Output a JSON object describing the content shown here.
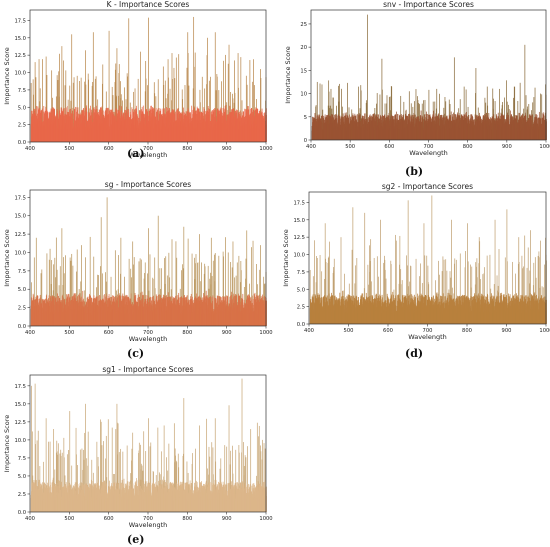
{
  "panels": [
    {
      "id": "a",
      "label": "(a)",
      "chart_data": {
        "type": "bar",
        "title": "K - Importance Scores",
        "xlabel": "Wavelength",
        "ylabel": "Importance Score",
        "xlim": [
          400,
          1000
        ],
        "ylim": [
          0,
          19
        ],
        "xticks": [
          400,
          500,
          600,
          700,
          800,
          900,
          1000
        ],
        "yticks": [
          0.0,
          2.5,
          5.0,
          7.5,
          10.0,
          12.5,
          15.0,
          17.5
        ],
        "ytick_labels": [
          "0.0",
          "2.5",
          "5.0",
          "7.5",
          "10.0",
          "12.5",
          "15.0",
          "17.5"
        ],
        "color": "#e8684a",
        "edge_color": "#b8864a",
        "base_level": 3.5,
        "peaks": [
          [
            412,
            11.5
          ],
          [
            440,
            12.3
          ],
          [
            480,
            13.8
          ],
          [
            505,
            15.5
          ],
          [
            540,
            13.2
          ],
          [
            560,
            15.8
          ],
          [
            600,
            16.0
          ],
          [
            620,
            13.5
          ],
          [
            650,
            17.8
          ],
          [
            680,
            13.0
          ],
          [
            700,
            17.9
          ],
          [
            760,
            12.8
          ],
          [
            800,
            15.8
          ],
          [
            815,
            18.0
          ],
          [
            850,
            15.0
          ],
          [
            870,
            15.8
          ],
          [
            905,
            14.0
          ],
          [
            928,
            12.8
          ],
          [
            958,
            11.8
          ],
          [
            985,
            10.5
          ]
        ]
      }
    },
    {
      "id": "b",
      "label": "(b)",
      "chart_data": {
        "type": "bar",
        "title": "snv - Importance Scores",
        "xlabel": "Wavelength",
        "ylabel": "Importance Score",
        "xlim": [
          400,
          1000
        ],
        "ylim": [
          0,
          28
        ],
        "xticks": [
          400,
          500,
          600,
          700,
          800,
          900,
          1000
        ],
        "yticks": [
          0,
          5,
          10,
          15,
          20,
          25
        ],
        "ytick_labels": [
          "0",
          "5",
          "10",
          "15",
          "20",
          "25"
        ],
        "color": "#9a5433",
        "edge_color": "#8a6a3a",
        "base_level": 4.0,
        "peaks": [
          [
            415,
            12.5
          ],
          [
            450,
            11.0
          ],
          [
            492,
            12.3
          ],
          [
            520,
            11.5
          ],
          [
            543,
            27.0
          ],
          [
            580,
            17.5
          ],
          [
            605,
            11.5
          ],
          [
            650,
            10.5
          ],
          [
            700,
            10.8
          ],
          [
            765,
            17.8
          ],
          [
            790,
            11.5
          ],
          [
            820,
            15.5
          ],
          [
            880,
            11.0
          ],
          [
            945,
            20.5
          ],
          [
            985,
            10.0
          ]
        ]
      }
    },
    {
      "id": "c",
      "label": "(c)",
      "chart_data": {
        "type": "bar",
        "title": "sg - Importance Scores",
        "xlabel": "Wavelength",
        "ylabel": "Importance Score",
        "xlim": [
          400,
          1000
        ],
        "ylim": [
          0,
          18.5
        ],
        "xticks": [
          400,
          500,
          600,
          700,
          800,
          900,
          1000
        ],
        "yticks": [
          0.0,
          2.5,
          5.0,
          7.5,
          10.0,
          12.5,
          15.0,
          17.5
        ],
        "ytick_labels": [
          "0.0",
          "2.5",
          "5.0",
          "7.5",
          "10.0",
          "12.5",
          "15.0",
          "17.5"
        ],
        "color": "#d87248",
        "edge_color": "#b8945a",
        "base_level": 3.0,
        "peaks": [
          [
            415,
            12.0
          ],
          [
            450,
            10.5
          ],
          [
            480,
            13.3
          ],
          [
            505,
            9.8
          ],
          [
            530,
            11.0
          ],
          [
            580,
            14.8
          ],
          [
            595,
            17.5
          ],
          [
            630,
            12.0
          ],
          [
            660,
            11.5
          ],
          [
            700,
            13.3
          ],
          [
            725,
            15.0
          ],
          [
            760,
            11.8
          ],
          [
            790,
            13.5
          ],
          [
            830,
            12.5
          ],
          [
            860,
            12.0
          ],
          [
            915,
            11.5
          ],
          [
            950,
            13.0
          ],
          [
            985,
            11.0
          ]
        ]
      }
    },
    {
      "id": "d",
      "label": "(d)",
      "chart_data": {
        "type": "bar",
        "title": "sg2 - Importance Scores",
        "xlabel": "Wavelength",
        "ylabel": "Importance Score",
        "xlim": [
          400,
          1000
        ],
        "ylim": [
          0,
          19
        ],
        "xticks": [
          400,
          500,
          600,
          700,
          800,
          900,
          1000
        ],
        "yticks": [
          0.0,
          2.5,
          5.0,
          7.5,
          10.0,
          12.5,
          15.0,
          17.5
        ],
        "ytick_labels": [
          "0.0",
          "2.5",
          "5.0",
          "7.5",
          "10.0",
          "12.5",
          "15.0",
          "17.5"
        ],
        "color": "#b8803e",
        "edge_color": "#c0a070",
        "base_level": 3.0,
        "peaks": [
          [
            420,
            9.5
          ],
          [
            440,
            14.5
          ],
          [
            480,
            12.5
          ],
          [
            510,
            16.8
          ],
          [
            540,
            16.0
          ],
          [
            580,
            15.0
          ],
          [
            620,
            12.0
          ],
          [
            650,
            17.8
          ],
          [
            690,
            14.5
          ],
          [
            710,
            18.5
          ],
          [
            760,
            15.0
          ],
          [
            800,
            14.5
          ],
          [
            830,
            12.5
          ],
          [
            870,
            15.0
          ],
          [
            900,
            16.5
          ],
          [
            930,
            12.5
          ],
          [
            960,
            13.5
          ],
          [
            985,
            12.0
          ]
        ]
      }
    },
    {
      "id": "e",
      "label": "(e)",
      "chart_data": {
        "type": "bar",
        "title": "sg1 - Importance Scores",
        "xlabel": "Wavelength",
        "ylabel": "Importance Score",
        "xlim": [
          400,
          1000
        ],
        "ylim": [
          0,
          19
        ],
        "xticks": [
          400,
          500,
          600,
          700,
          800,
          900,
          1000
        ],
        "yticks": [
          0.0,
          2.5,
          5.0,
          7.5,
          10.0,
          12.5,
          15.0,
          17.5
        ],
        "ytick_labels": [
          "0.0",
          "2.5",
          "5.0",
          "7.5",
          "10.0",
          "12.5",
          "15.0",
          "17.5"
        ],
        "color": "#dcb68a",
        "edge_color": "#c8a676",
        "base_level": 3.0,
        "peaks": [
          [
            403,
            17.5
          ],
          [
            412,
            17.8
          ],
          [
            440,
            13.0
          ],
          [
            500,
            14.0
          ],
          [
            540,
            15.0
          ],
          [
            580,
            12.5
          ],
          [
            620,
            15.0
          ],
          [
            660,
            11.0
          ],
          [
            700,
            13.0
          ],
          [
            740,
            12.0
          ],
          [
            790,
            15.8
          ],
          [
            830,
            12.0
          ],
          [
            870,
            13.0
          ],
          [
            905,
            14.8
          ],
          [
            938,
            18.5
          ],
          [
            960,
            11.5
          ],
          [
            990,
            10.0
          ]
        ]
      }
    }
  ]
}
